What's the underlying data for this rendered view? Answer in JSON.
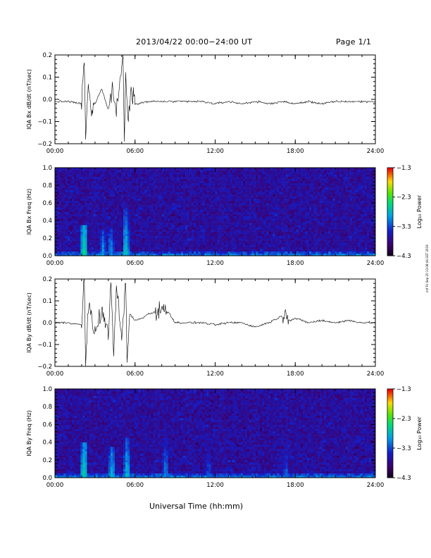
{
  "header": {
    "title": "2013/04/22  00:00−24:00 UT",
    "page": "Page 1/1"
  },
  "footer": {
    "xlabel": "Universal Time (hh:mm)",
    "stamp": "mif Fri Sep 20 13:08:44 GST 2019"
  },
  "colorbar": {
    "label": "Log₁₀ Power",
    "ticks": [
      "−1.3",
      "−2.3",
      "−3.3",
      "−4.3"
    ],
    "range": [
      -4.3,
      -1.3
    ]
  },
  "chart_data": [
    {
      "type": "line",
      "title": "",
      "xlabel": "",
      "ylabel": "IQA Bx dB/dt (nT/sec)",
      "xlim": [
        0,
        24
      ],
      "ylim": [
        -0.2,
        0.2
      ],
      "xticks": [
        "00:00",
        "06:00",
        "12:00",
        "18:00",
        "24:00"
      ],
      "yticks": [
        "−0.2",
        "−0.1",
        "0.0",
        "0.1",
        "0.2"
      ],
      "series": [
        {
          "x": [
            0,
            1,
            2,
            2.2,
            2.3,
            2.5,
            2.7,
            3,
            3.5,
            4,
            4.3,
            4.6,
            5,
            5.1,
            5.2,
            5.3,
            5.5,
            5.7,
            6,
            7,
            8,
            9,
            10,
            11,
            12,
            13,
            14,
            15,
            16,
            17,
            18,
            19,
            20,
            21,
            22,
            23,
            24
          ],
          "y": [
            -0.01,
            -0.01,
            -0.02,
            0.19,
            -0.19,
            0.07,
            -0.06,
            -0.02,
            0.05,
            -0.05,
            0.06,
            -0.06,
            0.15,
            0.2,
            -0.2,
            0.13,
            -0.1,
            0.06,
            -0.02,
            -0.01,
            -0.01,
            -0.01,
            -0.01,
            -0.01,
            -0.02,
            -0.01,
            -0.02,
            -0.01,
            -0.02,
            -0.01,
            -0.02,
            -0.01,
            -0.02,
            -0.01,
            -0.01,
            -0.01,
            -0.01
          ]
        }
      ]
    },
    {
      "type": "heatmap",
      "title": "",
      "xlabel": "",
      "ylabel": "IQA Bx Freq (Hz)",
      "xlim": [
        0,
        24
      ],
      "ylim": [
        0,
        1.0
      ],
      "xticks": [
        "00:00",
        "06:00",
        "12:00",
        "18:00",
        "24:00"
      ],
      "yticks": [
        "0.0",
        "0.2",
        "0.4",
        "0.6",
        "0.8",
        "1.0"
      ],
      "zlabel": "Log10 Power",
      "zlim": [
        -4.3,
        -1.3
      ],
      "bursts": [
        {
          "t": 2.2,
          "f_max": 0.35,
          "level": -2.4
        },
        {
          "t": 3.6,
          "f_max": 0.3,
          "level": -2.9
        },
        {
          "t": 4.2,
          "f_max": 0.3,
          "level": -2.9
        },
        {
          "t": 5.3,
          "f_max": 0.55,
          "level": -2.6
        }
      ]
    },
    {
      "type": "line",
      "title": "",
      "xlabel": "",
      "ylabel": "IQA By dB/dt (nT/sec)",
      "xlim": [
        0,
        24
      ],
      "ylim": [
        -0.2,
        0.2
      ],
      "xticks": [
        "00:00",
        "06:00",
        "12:00",
        "18:00",
        "24:00"
      ],
      "yticks": [
        "−0.2",
        "−0.1",
        "0.0",
        "0.1",
        "0.2"
      ],
      "series": [
        {
          "x": [
            0,
            1,
            2,
            2.2,
            2.3,
            2.5,
            3,
            3.5,
            4,
            4.2,
            4.4,
            4.6,
            5,
            5.3,
            5.4,
            5.6,
            6,
            6.5,
            7,
            7.5,
            8,
            8.5,
            9,
            10,
            11,
            12,
            13,
            14,
            15,
            16,
            17,
            17.3,
            17.6,
            18,
            19,
            20,
            21,
            22,
            23,
            24
          ],
          "y": [
            0.0,
            0.0,
            -0.01,
            0.2,
            -0.2,
            0.08,
            -0.05,
            0.06,
            -0.06,
            0.2,
            -0.15,
            0.18,
            -0.09,
            0.2,
            -0.19,
            0.04,
            0.01,
            0.02,
            0.04,
            0.05,
            0.06,
            0.05,
            0.0,
            0.0,
            0.0,
            -0.01,
            0.0,
            0.0,
            -0.02,
            0.0,
            0.03,
            0.06,
            0.01,
            0.02,
            0.0,
            0.01,
            0.0,
            0.01,
            0.0,
            0.0
          ]
        }
      ]
    },
    {
      "type": "heatmap",
      "title": "",
      "xlabel": "",
      "ylabel": "IQA By Freq (Hz)",
      "xlim": [
        0,
        24
      ],
      "ylim": [
        0,
        1.0
      ],
      "xticks": [
        "00:00",
        "06:00",
        "12:00",
        "18:00",
        "24:00"
      ],
      "yticks": [
        "0.0",
        "0.2",
        "0.4",
        "0.6",
        "0.8",
        "1.0"
      ],
      "zlabel": "Log10 Power",
      "zlim": [
        -4.3,
        -1.3
      ],
      "bursts": [
        {
          "t": 2.2,
          "f_max": 0.4,
          "level": -2.5
        },
        {
          "t": 4.3,
          "f_max": 0.35,
          "level": -2.7
        },
        {
          "t": 5.4,
          "f_max": 0.45,
          "level": -2.7
        },
        {
          "t": 8.3,
          "f_max": 1.0,
          "level": -2.9
        },
        {
          "t": 11.5,
          "f_max": 1.0,
          "level": -3.1
        },
        {
          "t": 17.3,
          "f_max": 1.0,
          "level": -3.1
        }
      ]
    }
  ]
}
